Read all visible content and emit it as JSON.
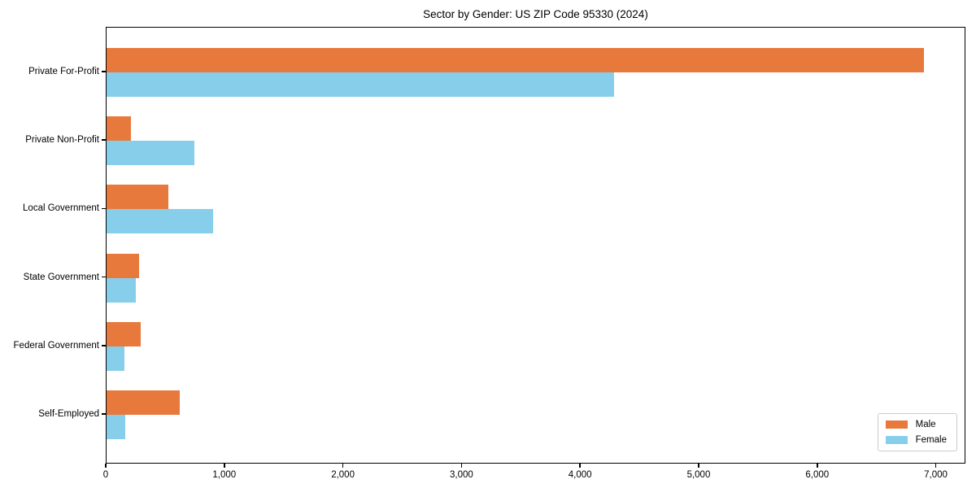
{
  "title": "Sector by Gender: US ZIP Code 95330 (2024)",
  "chart_data": {
    "type": "bar",
    "orientation": "horizontal",
    "title": "Sector by Gender: US ZIP Code 95330 (2024)",
    "categories": [
      "Private For-Profit",
      "Private Non-Profit",
      "Local Government",
      "State Government",
      "Federal Government",
      "Self-Employed"
    ],
    "series": [
      {
        "name": "Male",
        "color": "#E8793C",
        "values": [
          6890,
          205,
          520,
          275,
          290,
          620
        ]
      },
      {
        "name": "Female",
        "color": "#87CEEB",
        "values": [
          4280,
          740,
          900,
          250,
          150,
          160
        ]
      }
    ],
    "xlabel": "",
    "ylabel": "",
    "xlim": [
      0,
      7250
    ],
    "xticks": [
      0,
      1000,
      2000,
      3000,
      4000,
      5000,
      6000,
      7000
    ],
    "xtick_labels": [
      "0",
      "1,000",
      "2,000",
      "3,000",
      "4,000",
      "5,000",
      "6,000",
      "7,000"
    ],
    "grid": false,
    "legend_position": "lower right"
  }
}
